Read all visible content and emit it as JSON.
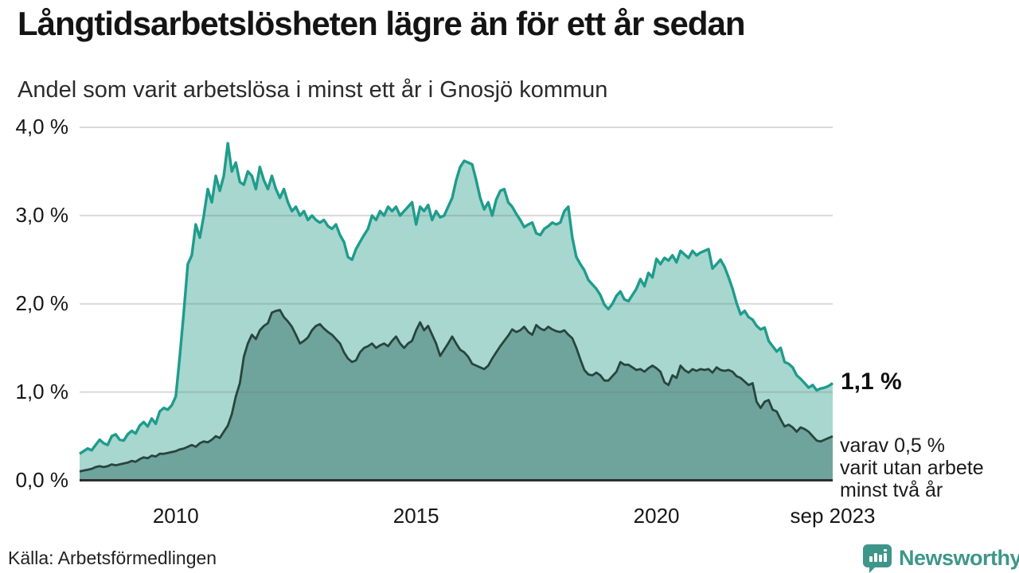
{
  "header": {
    "title": "Långtidsarbetslösheten lägre än för ett år sedan",
    "subtitle": "Andel som varit arbetslösa i minst ett år i Gnosjö kommun"
  },
  "footer": {
    "source": "Källa: Arbetsförmedlingen",
    "brand": "Newsworthy"
  },
  "colors": {
    "total_fill": "#a7d7cf",
    "total_stroke": "#1f9c8c",
    "subset_fill": "#6fa49c",
    "subset_stroke": "#27453e",
    "gridline": "rgba(120,120,120,0.28)",
    "axis": "#2e2e2e",
    "brand_teal": "#3e968a"
  },
  "chart_data": {
    "type": "area",
    "title": "Långtidsarbetslösheten lägre än för ett år sedan",
    "subtitle": "Andel som varit arbetslösa i minst ett år i Gnosjö kommun",
    "unit": "%",
    "frequency": "monthly",
    "x_start": "2008-01",
    "x_end": "2023-09",
    "ylim": [
      0,
      4
    ],
    "grid": true,
    "y_ticks": [
      {
        "value": 4,
        "label": "4,0 %"
      },
      {
        "value": 3,
        "label": "3,0 %"
      },
      {
        "value": 2,
        "label": "2,0 %"
      },
      {
        "value": 1,
        "label": "1,0 %"
      },
      {
        "value": 0,
        "label": "0,0 %"
      }
    ],
    "x_ticks": [
      {
        "month_index": 24,
        "label": "2010"
      },
      {
        "month_index": 84,
        "label": "2015"
      },
      {
        "month_index": 144,
        "label": "2020"
      },
      {
        "month_index": 188,
        "label": "sep 2023"
      }
    ],
    "series": [
      {
        "id": "arbetslosa-minst-ett-ar",
        "label": "Andel som varit arbetslösa i minst ett år",
        "end_value_label": "1,1 %",
        "fill": "#a7d7cf",
        "stroke": "#1f9c8c",
        "stroke_width": 3.4,
        "values": [
          0.3,
          0.33,
          0.36,
          0.34,
          0.4,
          0.46,
          0.42,
          0.4,
          0.5,
          0.52,
          0.46,
          0.45,
          0.52,
          0.56,
          0.53,
          0.62,
          0.66,
          0.61,
          0.7,
          0.64,
          0.78,
          0.82,
          0.8,
          0.85,
          0.95,
          1.4,
          1.9,
          2.45,
          2.55,
          2.9,
          2.75,
          3.0,
          3.3,
          3.15,
          3.45,
          3.28,
          3.45,
          3.82,
          3.5,
          3.6,
          3.38,
          3.35,
          3.5,
          3.45,
          3.3,
          3.55,
          3.4,
          3.3,
          3.45,
          3.3,
          3.2,
          3.3,
          3.15,
          3.05,
          3.1,
          3.0,
          3.05,
          2.95,
          3.0,
          2.95,
          2.92,
          2.95,
          2.88,
          2.85,
          2.9,
          2.78,
          2.7,
          2.53,
          2.5,
          2.62,
          2.7,
          2.78,
          2.85,
          3.0,
          2.95,
          3.05,
          3.0,
          3.1,
          3.05,
          3.1,
          3.0,
          3.05,
          3.1,
          3.15,
          2.9,
          3.1,
          3.05,
          3.12,
          2.95,
          3.05,
          2.98,
          3.0,
          3.1,
          3.2,
          3.4,
          3.55,
          3.62,
          3.6,
          3.58,
          3.4,
          3.2,
          3.07,
          3.15,
          3.0,
          3.18,
          3.28,
          3.3,
          3.15,
          3.1,
          3.02,
          2.95,
          2.87,
          2.9,
          2.92,
          2.8,
          2.78,
          2.85,
          2.88,
          2.92,
          2.9,
          2.92,
          3.05,
          3.1,
          2.75,
          2.53,
          2.45,
          2.38,
          2.27,
          2.22,
          2.17,
          2.1,
          1.99,
          1.94,
          2.0,
          2.09,
          2.14,
          2.05,
          2.03,
          2.1,
          2.17,
          2.28,
          2.2,
          2.35,
          2.3,
          2.51,
          2.45,
          2.52,
          2.49,
          2.55,
          2.47,
          2.6,
          2.56,
          2.52,
          2.6,
          2.55,
          2.58,
          2.6,
          2.62,
          2.4,
          2.45,
          2.5,
          2.42,
          2.3,
          2.17,
          2.01,
          1.88,
          1.92,
          1.85,
          1.82,
          1.75,
          1.71,
          1.73,
          1.58,
          1.52,
          1.46,
          1.5,
          1.34,
          1.32,
          1.28,
          1.19,
          1.15,
          1.1,
          1.05,
          1.08,
          1.02,
          1.04,
          1.05,
          1.07,
          1.1
        ]
      },
      {
        "id": "arbetslosa-minst-tva-ar",
        "label": "varav 0,5 % varit utan arbete minst två år",
        "end_value_label": "0,5 %",
        "fill": "#6fa49c",
        "stroke": "#27453e",
        "stroke_width": 2.8,
        "values": [
          0.1,
          0.11,
          0.12,
          0.13,
          0.15,
          0.16,
          0.15,
          0.16,
          0.18,
          0.17,
          0.18,
          0.19,
          0.2,
          0.22,
          0.21,
          0.24,
          0.26,
          0.25,
          0.28,
          0.27,
          0.3,
          0.3,
          0.31,
          0.32,
          0.33,
          0.35,
          0.36,
          0.38,
          0.4,
          0.38,
          0.42,
          0.44,
          0.43,
          0.46,
          0.5,
          0.48,
          0.55,
          0.62,
          0.75,
          0.95,
          1.1,
          1.4,
          1.55,
          1.65,
          1.6,
          1.7,
          1.75,
          1.78,
          1.9,
          1.92,
          1.93,
          1.85,
          1.8,
          1.74,
          1.65,
          1.55,
          1.58,
          1.62,
          1.7,
          1.75,
          1.77,
          1.72,
          1.68,
          1.65,
          1.6,
          1.55,
          1.45,
          1.38,
          1.34,
          1.36,
          1.45,
          1.5,
          1.52,
          1.55,
          1.5,
          1.53,
          1.55,
          1.52,
          1.58,
          1.63,
          1.55,
          1.5,
          1.55,
          1.58,
          1.7,
          1.79,
          1.7,
          1.75,
          1.65,
          1.55,
          1.41,
          1.48,
          1.55,
          1.63,
          1.55,
          1.48,
          1.45,
          1.4,
          1.32,
          1.3,
          1.28,
          1.26,
          1.3,
          1.38,
          1.45,
          1.52,
          1.58,
          1.64,
          1.71,
          1.68,
          1.7,
          1.74,
          1.68,
          1.65,
          1.76,
          1.72,
          1.7,
          1.74,
          1.71,
          1.69,
          1.68,
          1.7,
          1.65,
          1.61,
          1.5,
          1.37,
          1.25,
          1.2,
          1.19,
          1.22,
          1.19,
          1.13,
          1.13,
          1.18,
          1.23,
          1.34,
          1.31,
          1.31,
          1.28,
          1.25,
          1.26,
          1.23,
          1.27,
          1.3,
          1.27,
          1.23,
          1.11,
          1.08,
          1.19,
          1.16,
          1.3,
          1.25,
          1.22,
          1.26,
          1.24,
          1.26,
          1.25,
          1.26,
          1.22,
          1.28,
          1.25,
          1.24,
          1.25,
          1.23,
          1.18,
          1.16,
          1.12,
          1.08,
          1.1,
          0.89,
          0.82,
          0.89,
          0.91,
          0.8,
          0.78,
          0.69,
          0.61,
          0.63,
          0.6,
          0.55,
          0.6,
          0.58,
          0.55,
          0.5,
          0.45,
          0.44,
          0.46,
          0.48,
          0.5
        ]
      }
    ],
    "annotations": {
      "end_label": "1,1 %",
      "note_lines": [
        "varav 0,5 %",
        "varit utan arbete",
        "minst två år"
      ]
    }
  }
}
